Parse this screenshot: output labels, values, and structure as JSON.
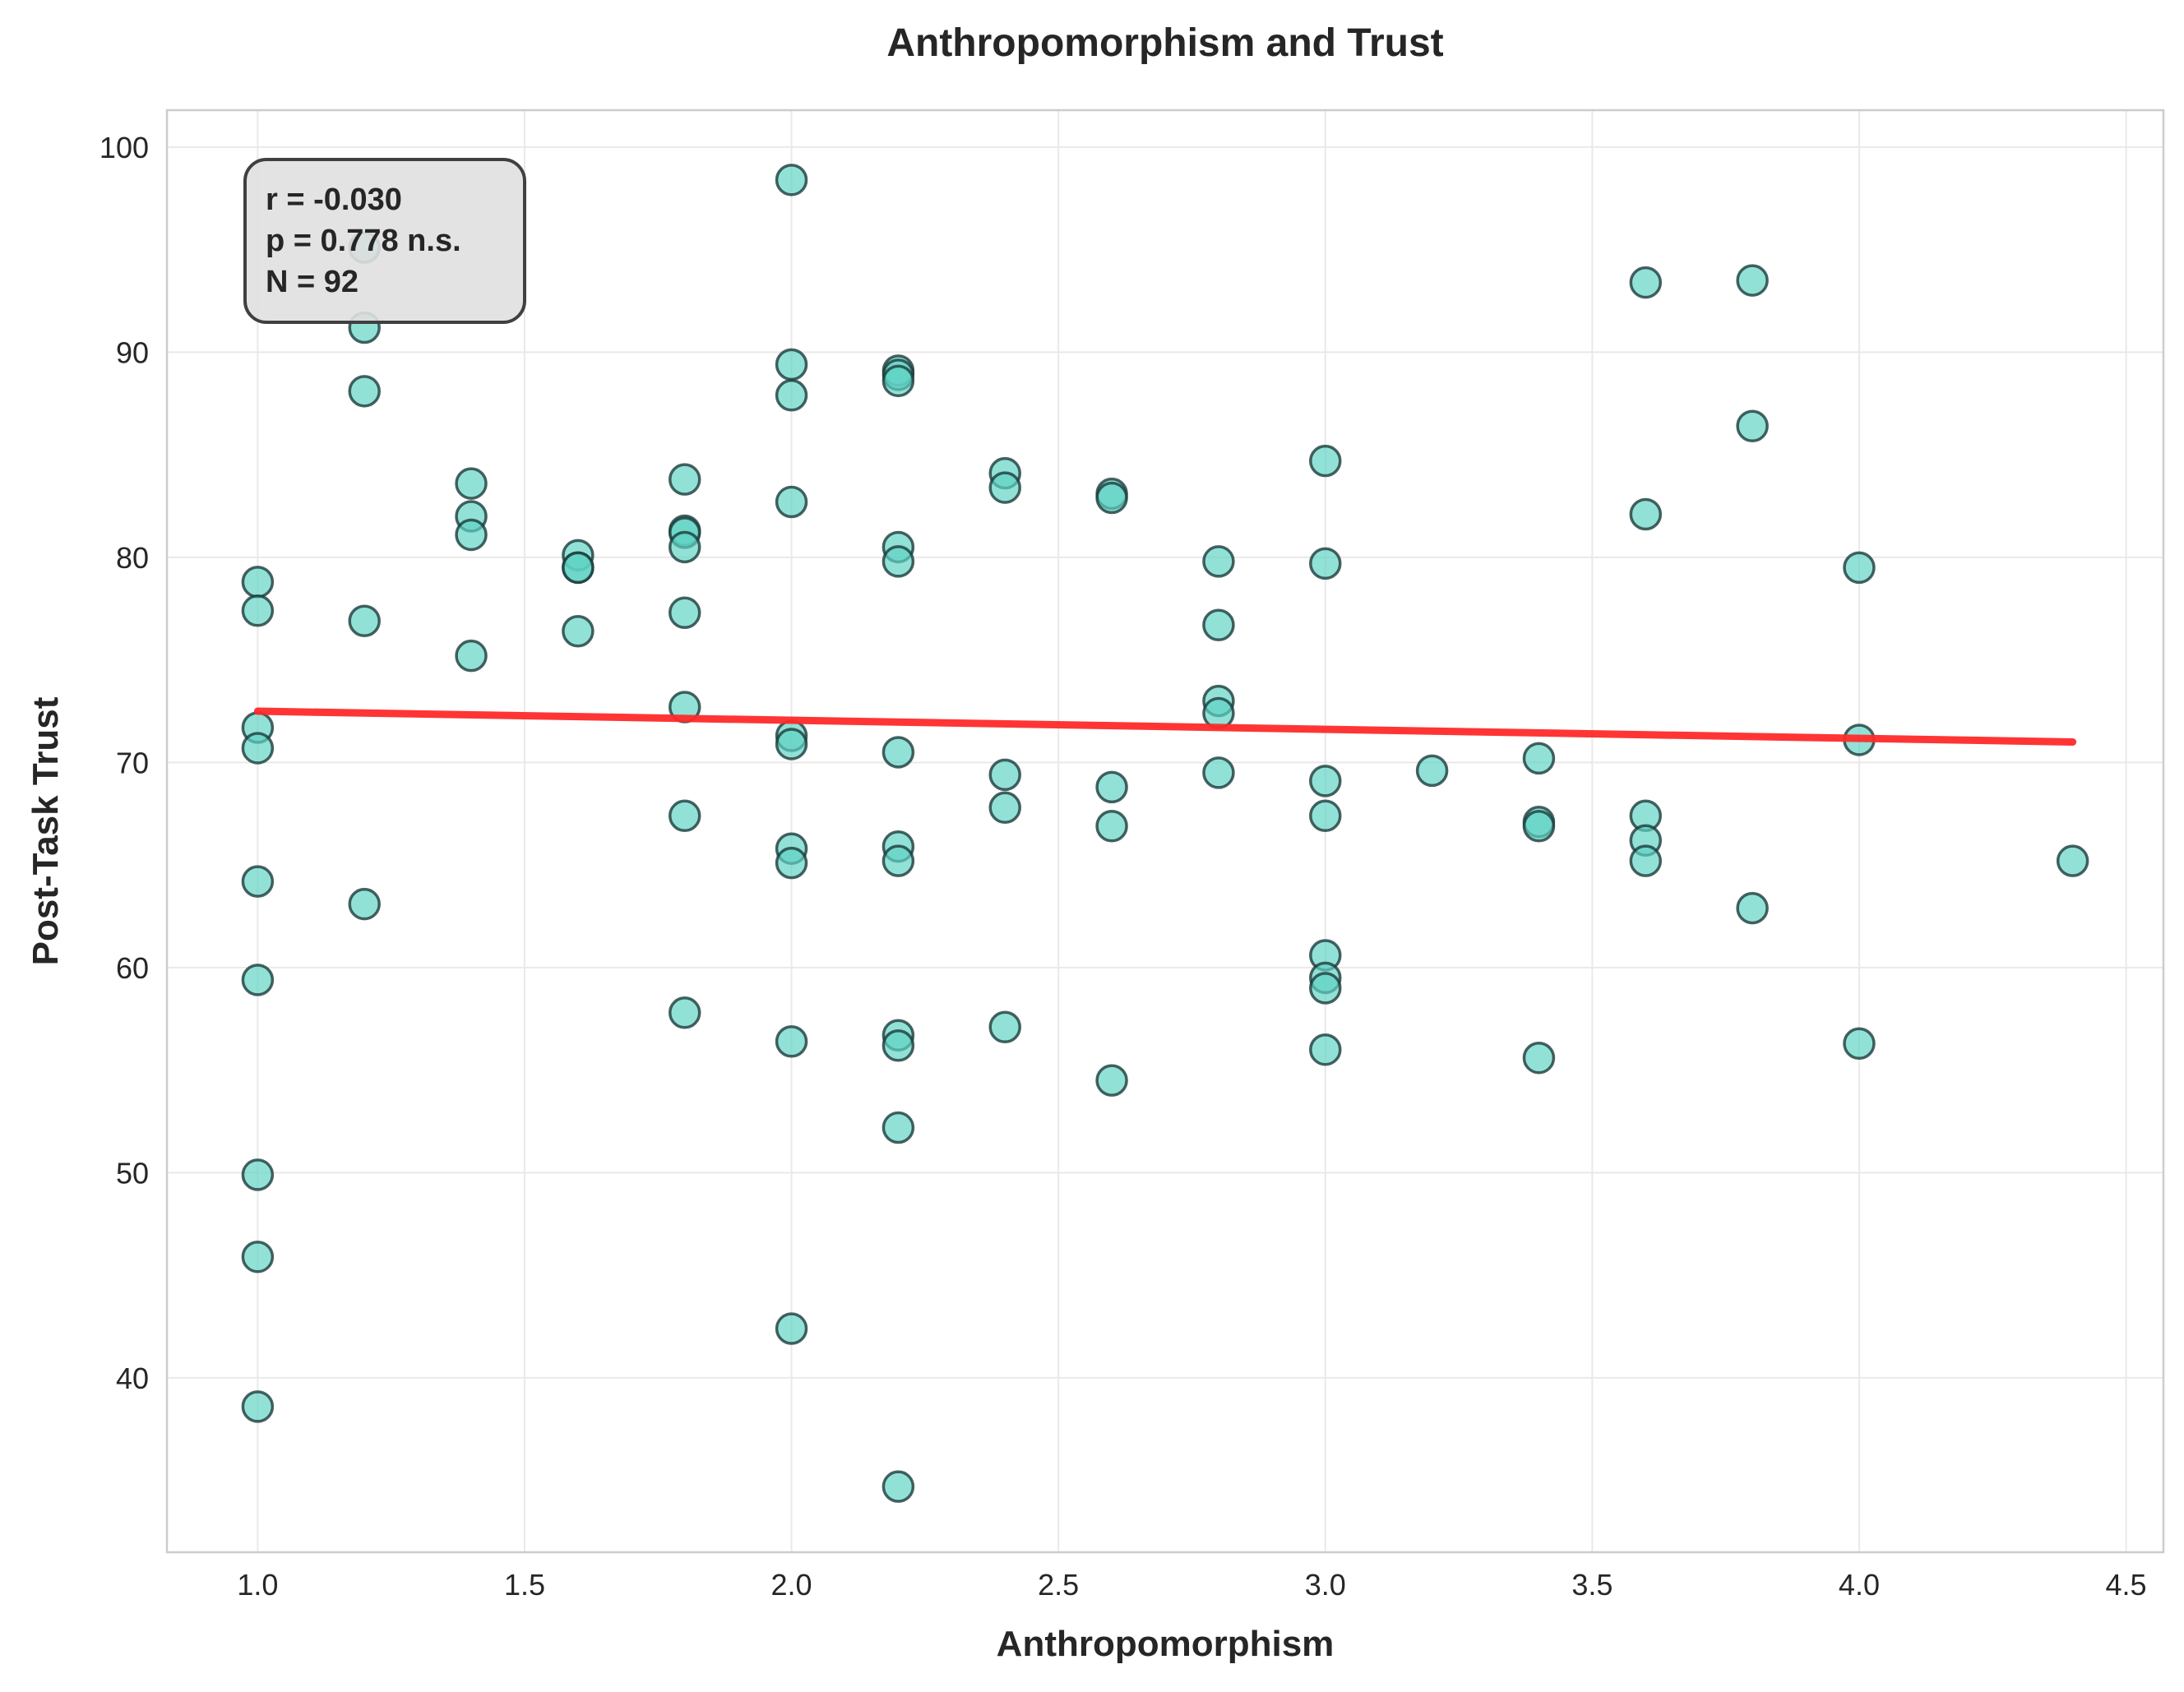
{
  "chart_data": {
    "type": "scatter",
    "title": "Anthropomorphism and Trust",
    "xlabel": "Anthropomorphism",
    "ylabel": "Post-Task Trust",
    "xlim": [
      0.83,
      4.57
    ],
    "ylim": [
      31.5,
      101.8
    ],
    "xticks": [
      1.0,
      1.5,
      2.0,
      2.5,
      3.0,
      3.5,
      4.0,
      4.5
    ],
    "xtick_labels": [
      "1.0",
      "1.5",
      "2.0",
      "2.5",
      "3.0",
      "3.5",
      "4.0",
      "4.5"
    ],
    "yticks": [
      40,
      50,
      60,
      70,
      80,
      90,
      100
    ],
    "ytick_labels": [
      "40",
      "50",
      "60",
      "70",
      "80",
      "90",
      "100"
    ],
    "grid": true,
    "point_color": "#5fd3c4",
    "point_edge_color": "#1b3b3b",
    "fit_color": "#ff2a2a",
    "points": [
      {
        "x": 1.0,
        "y": 78.8
      },
      {
        "x": 1.0,
        "y": 77.4
      },
      {
        "x": 1.0,
        "y": 71.7
      },
      {
        "x": 1.0,
        "y": 70.7
      },
      {
        "x": 1.0,
        "y": 64.2
      },
      {
        "x": 1.0,
        "y": 59.4
      },
      {
        "x": 1.0,
        "y": 49.9
      },
      {
        "x": 1.0,
        "y": 45.9
      },
      {
        "x": 1.0,
        "y": 38.6
      },
      {
        "x": 1.2,
        "y": 95.1
      },
      {
        "x": 1.2,
        "y": 91.2
      },
      {
        "x": 1.2,
        "y": 88.1
      },
      {
        "x": 1.2,
        "y": 76.9
      },
      {
        "x": 1.2,
        "y": 63.1
      },
      {
        "x": 1.4,
        "y": 83.6
      },
      {
        "x": 1.4,
        "y": 82.0
      },
      {
        "x": 1.4,
        "y": 81.1
      },
      {
        "x": 1.4,
        "y": 75.2
      },
      {
        "x": 1.6,
        "y": 80.1
      },
      {
        "x": 1.6,
        "y": 79.5
      },
      {
        "x": 1.6,
        "y": 79.5
      },
      {
        "x": 1.6,
        "y": 76.4
      },
      {
        "x": 1.8,
        "y": 83.8
      },
      {
        "x": 1.8,
        "y": 81.3
      },
      {
        "x": 1.8,
        "y": 81.2
      },
      {
        "x": 1.8,
        "y": 80.5
      },
      {
        "x": 1.8,
        "y": 77.3
      },
      {
        "x": 1.8,
        "y": 72.7
      },
      {
        "x": 1.8,
        "y": 67.4
      },
      {
        "x": 1.8,
        "y": 57.8
      },
      {
        "x": 2.0,
        "y": 98.4
      },
      {
        "x": 2.0,
        "y": 89.4
      },
      {
        "x": 2.0,
        "y": 87.9
      },
      {
        "x": 2.0,
        "y": 82.7
      },
      {
        "x": 2.0,
        "y": 71.3
      },
      {
        "x": 2.0,
        "y": 70.9
      },
      {
        "x": 2.0,
        "y": 65.8
      },
      {
        "x": 2.0,
        "y": 65.1
      },
      {
        "x": 2.0,
        "y": 56.4
      },
      {
        "x": 2.0,
        "y": 42.4
      },
      {
        "x": 2.2,
        "y": 89.1
      },
      {
        "x": 2.2,
        "y": 88.9
      },
      {
        "x": 2.2,
        "y": 88.6
      },
      {
        "x": 2.2,
        "y": 80.5
      },
      {
        "x": 2.2,
        "y": 79.8
      },
      {
        "x": 2.2,
        "y": 70.5
      },
      {
        "x": 2.2,
        "y": 65.9
      },
      {
        "x": 2.2,
        "y": 65.2
      },
      {
        "x": 2.2,
        "y": 56.7
      },
      {
        "x": 2.2,
        "y": 56.2
      },
      {
        "x": 2.2,
        "y": 52.2
      },
      {
        "x": 2.2,
        "y": 34.7
      },
      {
        "x": 2.4,
        "y": 84.1
      },
      {
        "x": 2.4,
        "y": 83.4
      },
      {
        "x": 2.4,
        "y": 69.4
      },
      {
        "x": 2.4,
        "y": 67.8
      },
      {
        "x": 2.4,
        "y": 57.1
      },
      {
        "x": 2.6,
        "y": 83.1
      },
      {
        "x": 2.6,
        "y": 82.9
      },
      {
        "x": 2.6,
        "y": 68.8
      },
      {
        "x": 2.6,
        "y": 66.9
      },
      {
        "x": 2.6,
        "y": 54.5
      },
      {
        "x": 2.8,
        "y": 79.8
      },
      {
        "x": 2.8,
        "y": 76.7
      },
      {
        "x": 2.8,
        "y": 73.0
      },
      {
        "x": 2.8,
        "y": 72.4
      },
      {
        "x": 2.8,
        "y": 69.5
      },
      {
        "x": 3.0,
        "y": 84.7
      },
      {
        "x": 3.0,
        "y": 79.7
      },
      {
        "x": 3.0,
        "y": 69.1
      },
      {
        "x": 3.0,
        "y": 67.4
      },
      {
        "x": 3.0,
        "y": 60.6
      },
      {
        "x": 3.0,
        "y": 59.5
      },
      {
        "x": 3.0,
        "y": 59.0
      },
      {
        "x": 3.0,
        "y": 56.0
      },
      {
        "x": 3.2,
        "y": 69.6
      },
      {
        "x": 3.4,
        "y": 70.2
      },
      {
        "x": 3.4,
        "y": 67.1
      },
      {
        "x": 3.4,
        "y": 66.9
      },
      {
        "x": 3.4,
        "y": 55.6
      },
      {
        "x": 3.6,
        "y": 93.4
      },
      {
        "x": 3.6,
        "y": 82.1
      },
      {
        "x": 3.6,
        "y": 67.4
      },
      {
        "x": 3.6,
        "y": 66.2
      },
      {
        "x": 3.6,
        "y": 65.2
      },
      {
        "x": 3.8,
        "y": 93.5
      },
      {
        "x": 3.8,
        "y": 86.4
      },
      {
        "x": 3.8,
        "y": 62.9
      },
      {
        "x": 4.0,
        "y": 79.5
      },
      {
        "x": 4.0,
        "y": 71.1
      },
      {
        "x": 4.0,
        "y": 56.3
      },
      {
        "x": 4.4,
        "y": 65.2
      }
    ],
    "fit_line": {
      "x": [
        1.0,
        4.4
      ],
      "y": [
        72.5,
        71.0
      ]
    },
    "annotation": {
      "lines": [
        "r = -0.030",
        "p = 0.778 n.s.",
        "N = 92"
      ]
    }
  }
}
